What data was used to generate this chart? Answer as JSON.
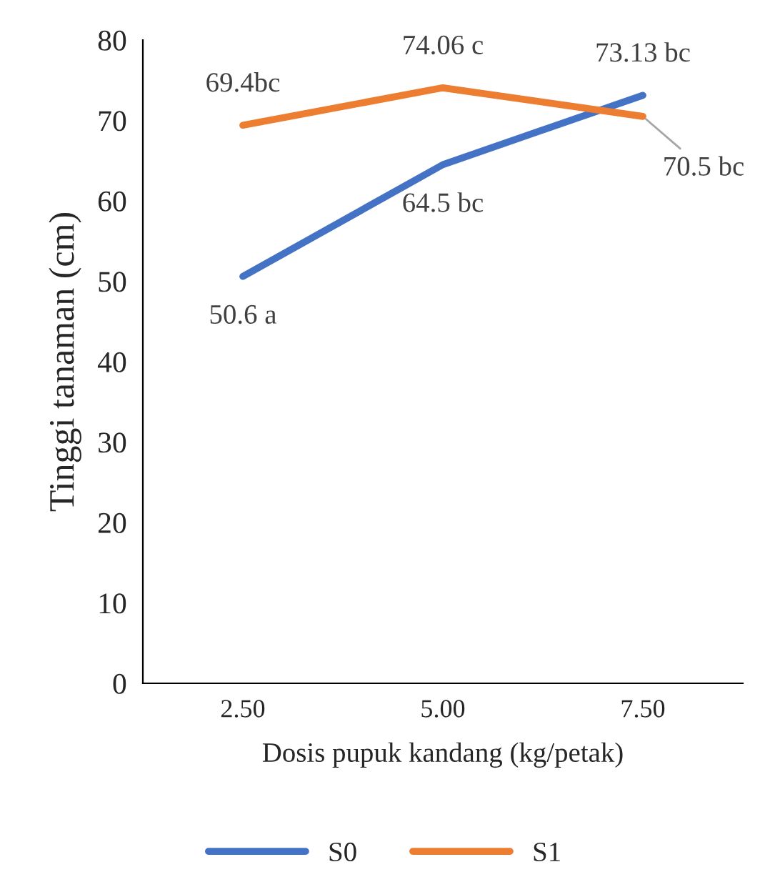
{
  "chart_data": {
    "type": "line",
    "xlabel": "Dosis pupuk kandang (kg/petak)",
    "ylabel": "Tinggi tanaman (cm)",
    "categories": [
      "2.50",
      "5.00",
      "7.50"
    ],
    "series": [
      {
        "name": "S0",
        "color": "#4472c4",
        "values": [
          50.6,
          64.5,
          73.13
        ],
        "value_labels": [
          "50.6 a",
          "64.5 bc",
          "73.13 bc"
        ]
      },
      {
        "name": "S1",
        "color": "#ed7d31",
        "values": [
          69.4,
          74.06,
          70.5
        ],
        "value_labels": [
          "69.4bc",
          "74.06 c",
          "70.5 bc"
        ]
      }
    ],
    "ylim": [
      0,
      80
    ],
    "yticks": [
      0,
      10,
      20,
      30,
      40,
      50,
      60,
      70,
      80
    ],
    "grid": false,
    "legend": "bottom",
    "marker": "none",
    "line_style": "solid"
  }
}
